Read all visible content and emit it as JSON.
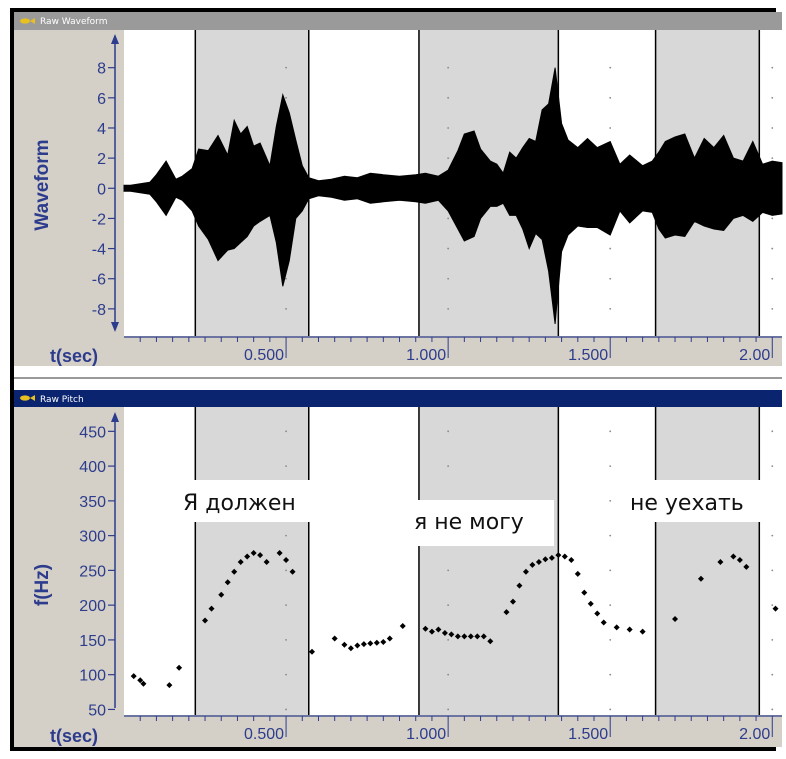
{
  "colors": {
    "frame": "#000000",
    "titlebar_gray": "#9a9a9a",
    "titlebar_navy": "#0a2470",
    "axis_panel": "#d4d0c8",
    "plot_bg": "#ffffff",
    "shade": "#d8d8d8",
    "axis_text": "#2d3c8c",
    "waveform": "#000000"
  },
  "panels": {
    "waveform": {
      "title": "Raw Waveform",
      "icon": "fish-icon"
    },
    "pitch": {
      "title": "Raw Pitch",
      "icon": "fish-icon"
    }
  },
  "annotations": [
    "Я должен",
    "я не могу",
    "не уехать"
  ],
  "boundaries_sec": [
    0.22,
    0.57,
    0.91,
    1.34,
    1.64,
    1.96
  ],
  "shaded_intervals_sec": [
    [
      0.22,
      0.57
    ],
    [
      0.91,
      1.34
    ],
    [
      1.64,
      1.96
    ]
  ],
  "chart_data": [
    {
      "type": "area",
      "ylabel": "Waveform",
      "xlabel": "t(sec)",
      "xlim": [
        0.0,
        2.03
      ],
      "ylim": [
        -9.8,
        10.5
      ],
      "yticks": [
        8,
        6,
        4,
        2,
        0,
        -2,
        -4,
        -6,
        -8
      ],
      "xticks": [
        0.5,
        1.0,
        1.5,
        2.0
      ],
      "xtick_labels": [
        "0.500",
        "1.000",
        "1.500",
        "2.00"
      ],
      "series": [
        {
          "x": [
            0.0,
            0.02,
            0.05,
            0.08,
            0.1,
            0.13,
            0.16,
            0.18,
            0.21,
            0.23,
            0.26,
            0.29,
            0.32,
            0.34,
            0.36,
            0.38,
            0.4,
            0.42,
            0.45,
            0.47,
            0.49,
            0.51,
            0.53,
            0.55,
            0.57,
            0.6,
            0.64,
            0.68,
            0.72,
            0.76,
            0.8,
            0.85,
            0.9,
            0.93,
            0.97,
            1.0,
            1.03,
            1.05,
            1.08,
            1.1,
            1.13,
            1.15,
            1.17,
            1.19,
            1.21,
            1.23,
            1.25,
            1.27,
            1.29,
            1.31,
            1.33,
            1.35,
            1.37,
            1.4,
            1.43,
            1.46,
            1.5,
            1.53,
            1.56,
            1.6,
            1.63,
            1.65,
            1.67,
            1.7,
            1.73,
            1.76,
            1.79,
            1.82,
            1.85,
            1.88,
            1.91,
            1.94,
            1.97,
            2.0,
            2.03
          ],
          "upper": [
            0.2,
            0.2,
            0.3,
            0.4,
            0.9,
            1.8,
            0.6,
            0.8,
            1.3,
            2.6,
            2.5,
            3.5,
            2.2,
            4.5,
            3.6,
            4.1,
            2.8,
            3.0,
            1.5,
            4.1,
            6.2,
            5.0,
            3.2,
            1.5,
            0.7,
            0.5,
            0.6,
            0.8,
            0.7,
            1.0,
            0.9,
            0.8,
            0.9,
            1.0,
            0.8,
            1.2,
            2.5,
            3.6,
            3.8,
            2.6,
            1.8,
            1.6,
            1.0,
            2.4,
            2.0,
            2.7,
            3.3,
            3.1,
            5.2,
            5.6,
            8.0,
            4.3,
            3.2,
            2.7,
            3.3,
            2.7,
            3.1,
            1.6,
            2.2,
            1.5,
            1.8,
            2.4,
            3.1,
            3.4,
            3.6,
            2.0,
            3.3,
            2.7,
            3.5,
            2.0,
            1.8,
            3.1,
            1.6,
            1.8,
            1.7
          ],
          "lower": [
            -0.2,
            -0.2,
            -0.3,
            -0.4,
            -0.9,
            -1.8,
            -0.6,
            -0.8,
            -1.5,
            -2.5,
            -3.4,
            -4.8,
            -4.1,
            -4.0,
            -3.6,
            -3.2,
            -2.5,
            -2.2,
            -1.8,
            -3.6,
            -6.5,
            -4.8,
            -2.0,
            -1.5,
            -0.7,
            -0.5,
            -0.6,
            -0.8,
            -0.7,
            -1.0,
            -0.9,
            -0.8,
            -0.9,
            -1.0,
            -0.8,
            -1.5,
            -2.7,
            -3.5,
            -3.2,
            -2.0,
            -1.2,
            -1.2,
            -1.0,
            -1.8,
            -1.8,
            -2.7,
            -4.0,
            -3.0,
            -3.4,
            -5.5,
            -9.0,
            -4.2,
            -3.1,
            -2.5,
            -2.6,
            -2.6,
            -3.1,
            -1.5,
            -2.3,
            -1.5,
            -1.6,
            -2.7,
            -3.3,
            -3.1,
            -3.2,
            -2.2,
            -2.5,
            -2.7,
            -2.8,
            -2.0,
            -1.8,
            -2.2,
            -1.6,
            -1.8,
            -1.7
          ]
        }
      ]
    },
    {
      "type": "scatter",
      "ylabel": "f(Hz)",
      "xlabel": "t(sec)",
      "xlim": [
        0.0,
        2.03
      ],
      "ylim": [
        42,
        485
      ],
      "yticks": [
        450,
        400,
        350,
        300,
        250,
        200,
        150,
        100,
        50
      ],
      "xticks": [
        0.5,
        1.0,
        1.5,
        2.0
      ],
      "xtick_labels": [
        "0.500",
        "1.000",
        "1.500",
        "2.00"
      ],
      "points": [
        [
          0.03,
          98
        ],
        [
          0.05,
          92
        ],
        [
          0.06,
          87
        ],
        [
          0.14,
          85
        ],
        [
          0.17,
          110
        ],
        [
          0.25,
          178
        ],
        [
          0.27,
          195
        ],
        [
          0.3,
          215
        ],
        [
          0.32,
          233
        ],
        [
          0.34,
          248
        ],
        [
          0.36,
          262
        ],
        [
          0.38,
          270
        ],
        [
          0.4,
          275
        ],
        [
          0.42,
          272
        ],
        [
          0.44,
          262
        ],
        [
          0.48,
          275
        ],
        [
          0.5,
          265
        ],
        [
          0.52,
          248
        ],
        [
          0.58,
          133
        ],
        [
          0.65,
          152
        ],
        [
          0.68,
          143
        ],
        [
          0.7,
          138
        ],
        [
          0.72,
          142
        ],
        [
          0.74,
          144
        ],
        [
          0.76,
          145
        ],
        [
          0.78,
          146
        ],
        [
          0.8,
          147
        ],
        [
          0.82,
          152
        ],
        [
          0.86,
          170
        ],
        [
          0.93,
          166
        ],
        [
          0.95,
          162
        ],
        [
          0.97,
          165
        ],
        [
          0.99,
          160
        ],
        [
          1.01,
          158
        ],
        [
          1.03,
          155
        ],
        [
          1.05,
          155
        ],
        [
          1.07,
          155
        ],
        [
          1.09,
          155
        ],
        [
          1.11,
          155
        ],
        [
          1.13,
          148
        ],
        [
          1.18,
          190
        ],
        [
          1.2,
          205
        ],
        [
          1.22,
          228
        ],
        [
          1.24,
          248
        ],
        [
          1.26,
          258
        ],
        [
          1.28,
          262
        ],
        [
          1.3,
          266
        ],
        [
          1.32,
          268
        ],
        [
          1.34,
          272
        ],
        [
          1.36,
          270
        ],
        [
          1.38,
          265
        ],
        [
          1.4,
          245
        ],
        [
          1.42,
          218
        ],
        [
          1.44,
          202
        ],
        [
          1.46,
          188
        ],
        [
          1.48,
          175
        ],
        [
          1.52,
          168
        ],
        [
          1.56,
          165
        ],
        [
          1.6,
          162
        ],
        [
          1.7,
          180
        ],
        [
          1.78,
          238
        ],
        [
          1.84,
          262
        ],
        [
          1.88,
          270
        ],
        [
          1.9,
          265
        ],
        [
          1.92,
          255
        ],
        [
          2.01,
          195
        ]
      ]
    }
  ]
}
